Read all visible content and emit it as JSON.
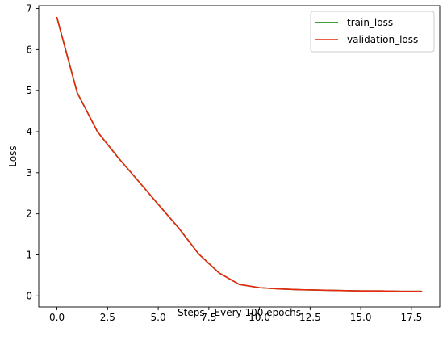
{
  "chart_data": {
    "type": "line",
    "title": "",
    "xlabel": "Steps - Every 100 epochs",
    "ylabel": "Loss",
    "xlim": [
      -0.9,
      18.9
    ],
    "ylim": [
      -0.27,
      7.07
    ],
    "x_ticks": [
      0.0,
      2.5,
      5.0,
      7.5,
      10.0,
      12.5,
      15.0,
      17.5
    ],
    "x_tick_labels": [
      "0.0",
      "2.5",
      "5.0",
      "7.5",
      "10.0",
      "12.5",
      "15.0",
      "17.5"
    ],
    "y_ticks": [
      0,
      1,
      2,
      3,
      4,
      5,
      6,
      7
    ],
    "y_tick_labels": [
      "0",
      "1",
      "2",
      "3",
      "4",
      "5",
      "6",
      "7"
    ],
    "grid": false,
    "legend_position": "top-right",
    "x": [
      0,
      1,
      2,
      3,
      4,
      5,
      6,
      7,
      8,
      9,
      10,
      11,
      12,
      13,
      14,
      15,
      16,
      17,
      18
    ],
    "series": [
      {
        "name": "train_loss",
        "color": "#008000",
        "values": [
          6.78,
          4.95,
          4.0,
          3.38,
          2.81,
          2.23,
          1.66,
          1.02,
          0.56,
          0.28,
          0.2,
          0.17,
          0.15,
          0.14,
          0.13,
          0.12,
          0.12,
          0.11,
          0.11
        ]
      },
      {
        "name": "validation_loss",
        "color": "#e8270f",
        "values": [
          6.78,
          4.95,
          4.0,
          3.38,
          2.81,
          2.23,
          1.66,
          1.02,
          0.56,
          0.28,
          0.2,
          0.17,
          0.15,
          0.14,
          0.13,
          0.12,
          0.12,
          0.11,
          0.11
        ]
      }
    ]
  }
}
